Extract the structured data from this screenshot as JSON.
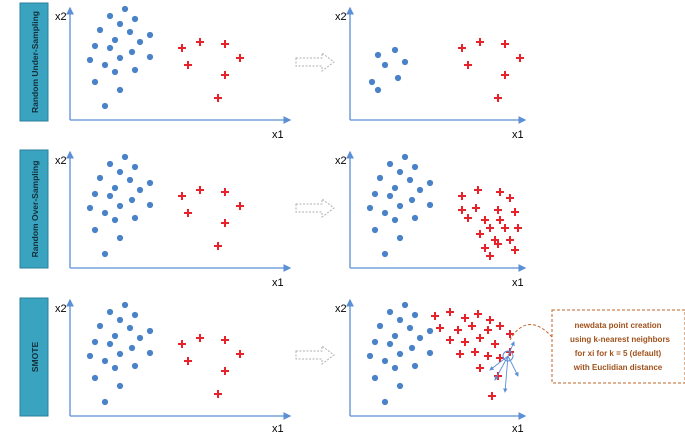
{
  "rows": [
    {
      "label": "Random Under-Sampling"
    },
    {
      "label": "Random Over-Sampling"
    },
    {
      "label": "SMOTE"
    }
  ],
  "axis": {
    "x_label": "x1",
    "y_label": "x2"
  },
  "callout": {
    "lines": [
      "newdata point creation",
      "using k-nearest neighbors",
      "for xi for k = 5  (default)",
      "with Euclidian distance"
    ]
  },
  "colors": {
    "label_box": "#3aa3bf",
    "axis": "#5b8fd6",
    "minority_class": "#e8222a",
    "majority_class": "#4a82c8",
    "callout_border": "#c0662a"
  },
  "markers": {
    "majority": "dot",
    "minority": "plus"
  }
}
